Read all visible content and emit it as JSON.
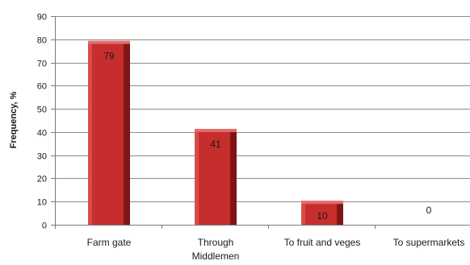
{
  "chart_data": {
    "type": "bar",
    "categories": [
      "Farm gate",
      "Through Middlemen",
      "To fruit and veges",
      "To supermarkets"
    ],
    "category_lines": [
      [
        "Farm gate"
      ],
      [
        "Through",
        "Middlemen"
      ],
      [
        "To fruit and veges"
      ],
      [
        "To supermarkets"
      ]
    ],
    "values": [
      79,
      41,
      10,
      0
    ],
    "data_labels": [
      "79",
      "41",
      "10",
      "0"
    ],
    "title": "",
    "xlabel": "",
    "ylabel": "Frequency, %",
    "ylim": [
      0,
      90
    ],
    "yticks": [
      0,
      10,
      20,
      30,
      40,
      50,
      60,
      70,
      80,
      90
    ],
    "grid": true,
    "legend": "none",
    "bar_color": "#c62e2e",
    "bar_side_color": "#7f1515",
    "bar_top_color": "#e36a6a"
  }
}
